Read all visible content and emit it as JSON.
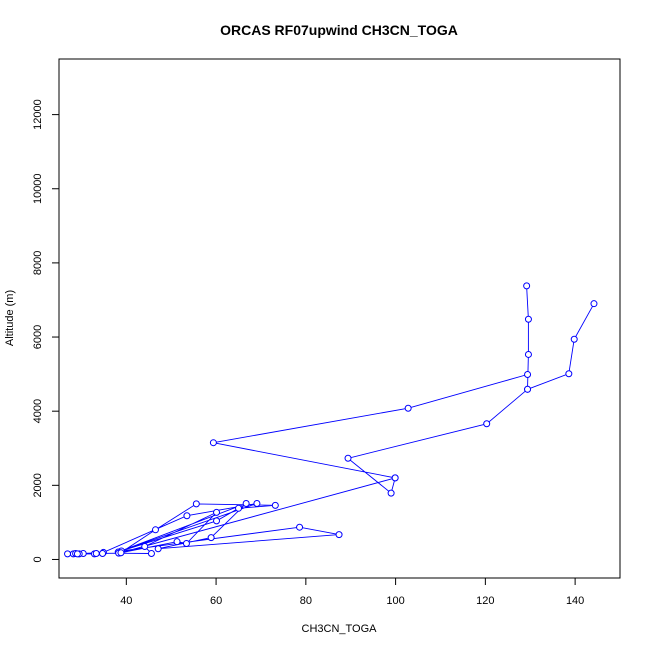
{
  "chart_data": {
    "type": "line",
    "title": "ORCAS RF07upwind CH3CN_TOGA",
    "xlabel": "CH3CN_TOGA",
    "ylabel": "Altitude (m)",
    "xlim": [
      25,
      150
    ],
    "ylim": [
      -500,
      13500
    ],
    "x_ticks": [
      40,
      60,
      80,
      100,
      120,
      140
    ],
    "y_ticks": [
      0,
      2000,
      4000,
      6000,
      8000,
      10000,
      12000
    ],
    "grid": false,
    "legend": "none",
    "series_color": "#0000ff",
    "series": [
      {
        "x": [
          129.2,
          129.6,
          129.6,
          129.4,
          138.6,
          139.8,
          144.2
        ],
        "y": [
          7380,
          6480,
          5530,
          4590,
          5010,
          5940,
          6900
        ]
      },
      {
        "x": [
          129.4,
          120.3,
          89.4,
          99.0,
          99.9,
          59.4,
          102.8,
          129.4
        ],
        "y": [
          4590,
          3660,
          2730,
          1790,
          2200,
          3150,
          4080,
          4990
        ]
      },
      {
        "x": [
          99.9,
          38.7,
          46.5,
          55.6,
          73.2,
          65.0,
          60.1,
          38.9,
          78.6,
          87.4,
          47.1,
          58.9,
          66.7,
          38.2,
          69.1,
          53.5,
          34.9,
          30.4,
          29.5,
          28.2,
          26.9,
          28.7,
          29.1,
          32.9,
          34.7,
          33.3,
          38.3,
          45.6,
          44.1,
          60.1,
          53.4,
          51.3,
          38.8
        ],
        "y": [
          2200,
          180,
          800,
          1500,
          1460,
          1380,
          1040,
          230,
          870,
          670,
          290,
          590,
          1510,
          200,
          1510,
          1180,
          190,
          160,
          150,
          150,
          150,
          160,
          150,
          150,
          160,
          160,
          170,
          160,
          350,
          1270,
          430,
          480,
          180
        ]
      }
    ]
  }
}
